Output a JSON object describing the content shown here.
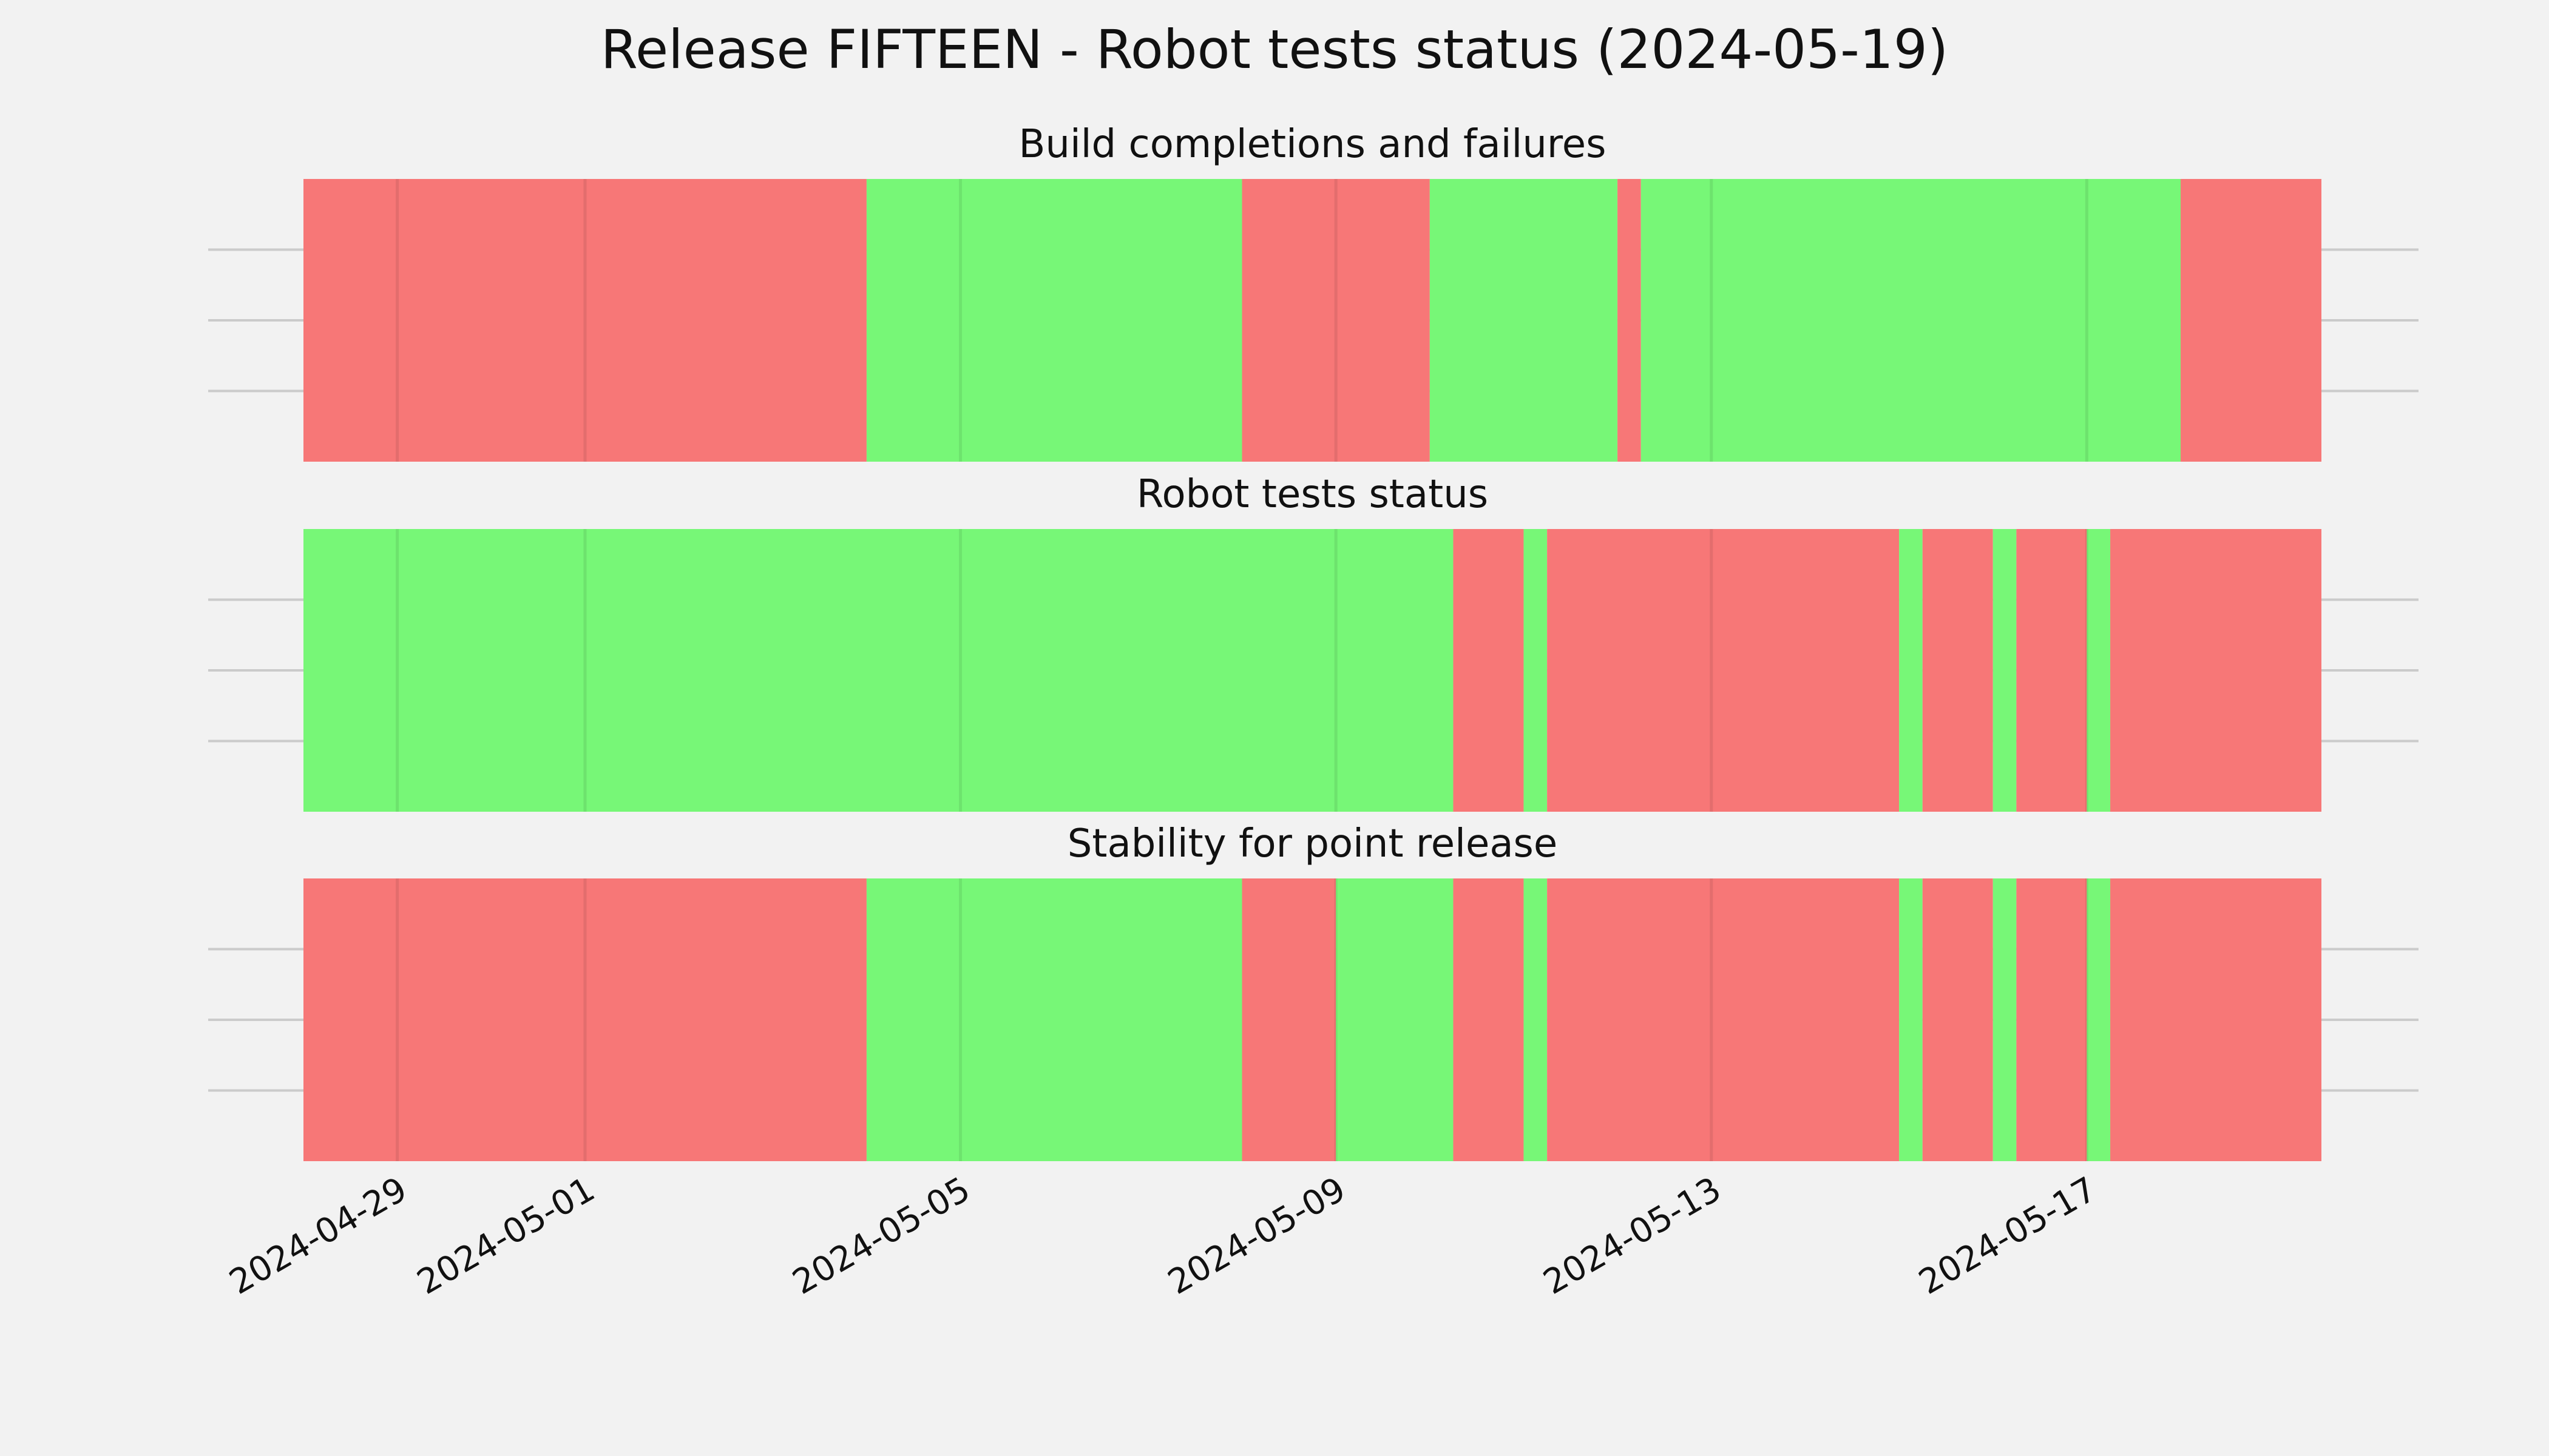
{
  "title": "Release FIFTEEN - Robot tests status (2024-05-19)",
  "colors": {
    "pass": "#77f777",
    "fail": "#f77777",
    "background": "#f2f2f2",
    "grid": "#cbcbcb"
  },
  "chart_data": {
    "type": "timeline",
    "x_range": [
      "2024-04-28",
      "2024-05-19 12:00"
    ],
    "x_ticks": [
      "2024-04-29",
      "2024-05-01",
      "2024-05-05",
      "2024-05-09",
      "2024-05-13",
      "2024-05-17"
    ],
    "grid": true,
    "panels": [
      {
        "title": "Build completions and failures",
        "segments": [
          {
            "start": "2024-04-28",
            "end": "2024-05-04",
            "status": "fail"
          },
          {
            "start": "2024-05-04",
            "end": "2024-05-08",
            "status": "pass"
          },
          {
            "start": "2024-05-08",
            "end": "2024-05-10",
            "status": "fail"
          },
          {
            "start": "2024-05-10",
            "end": "2024-05-12",
            "status": "pass"
          },
          {
            "start": "2024-05-12",
            "end": "2024-05-12 06:00",
            "status": "fail"
          },
          {
            "start": "2024-05-12 06:00",
            "end": "2024-05-18",
            "status": "pass"
          },
          {
            "start": "2024-05-18",
            "end": "2024-05-19 12:00",
            "status": "fail"
          }
        ]
      },
      {
        "title": "Robot tests status",
        "segments": [
          {
            "start": "2024-04-28",
            "end": "2024-05-10 06:00",
            "status": "pass"
          },
          {
            "start": "2024-05-10 06:00",
            "end": "2024-05-11",
            "status": "fail"
          },
          {
            "start": "2024-05-11",
            "end": "2024-05-11 06:00",
            "status": "pass"
          },
          {
            "start": "2024-05-11 06:00",
            "end": "2024-05-15",
            "status": "fail"
          },
          {
            "start": "2024-05-15",
            "end": "2024-05-15 06:00",
            "status": "pass"
          },
          {
            "start": "2024-05-15 06:00",
            "end": "2024-05-16",
            "status": "fail"
          },
          {
            "start": "2024-05-16",
            "end": "2024-05-16 06:00",
            "status": "pass"
          },
          {
            "start": "2024-05-16 06:00",
            "end": "2024-05-17",
            "status": "fail"
          },
          {
            "start": "2024-05-17",
            "end": "2024-05-17 06:00",
            "status": "pass"
          },
          {
            "start": "2024-05-17 06:00",
            "end": "2024-05-19 12:00",
            "status": "fail"
          }
        ]
      },
      {
        "title": "Stability for point release",
        "segments": [
          {
            "start": "2024-04-28",
            "end": "2024-05-04",
            "status": "fail"
          },
          {
            "start": "2024-05-04",
            "end": "2024-05-08",
            "status": "pass"
          },
          {
            "start": "2024-05-08",
            "end": "2024-05-09",
            "status": "fail"
          },
          {
            "start": "2024-05-09",
            "end": "2024-05-10 06:00",
            "status": "pass"
          },
          {
            "start": "2024-05-10 06:00",
            "end": "2024-05-11",
            "status": "fail"
          },
          {
            "start": "2024-05-11",
            "end": "2024-05-11 06:00",
            "status": "pass"
          },
          {
            "start": "2024-05-11 06:00",
            "end": "2024-05-15",
            "status": "fail"
          },
          {
            "start": "2024-05-15",
            "end": "2024-05-15 06:00",
            "status": "pass"
          },
          {
            "start": "2024-05-15 06:00",
            "end": "2024-05-16",
            "status": "fail"
          },
          {
            "start": "2024-05-16",
            "end": "2024-05-16 06:00",
            "status": "pass"
          },
          {
            "start": "2024-05-16 06:00",
            "end": "2024-05-17",
            "status": "fail"
          },
          {
            "start": "2024-05-17",
            "end": "2024-05-17 06:00",
            "status": "pass"
          },
          {
            "start": "2024-05-17 06:00",
            "end": "2024-05-19 12:00",
            "status": "fail"
          }
        ]
      }
    ]
  }
}
